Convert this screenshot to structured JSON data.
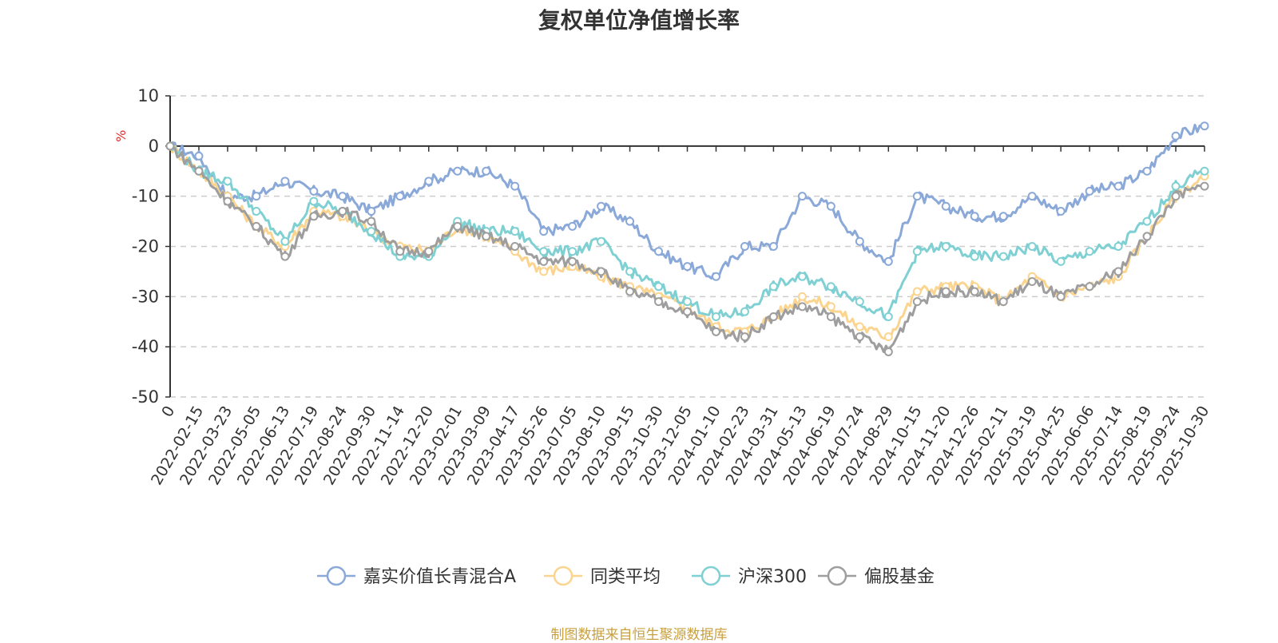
{
  "chart_data": {
    "type": "line",
    "title": "复权单位净值增长率",
    "ylabel": "%",
    "ylim": [
      -50,
      10
    ],
    "yticks": [
      10,
      0,
      -10,
      -20,
      -30,
      -40,
      -50
    ],
    "grid": true,
    "legend_position": "bottom-center",
    "x": [
      "0",
      "2022-02-15",
      "2022-03-23",
      "2022-05-05",
      "2022-06-13",
      "2022-07-19",
      "2022-08-24",
      "2022-09-30",
      "2022-11-14",
      "2022-12-20",
      "2023-02-01",
      "2023-03-09",
      "2023-04-17",
      "2023-05-26",
      "2023-07-05",
      "2023-08-10",
      "2023-09-15",
      "2023-10-30",
      "2023-12-05",
      "2024-01-10",
      "2024-02-23",
      "2024-03-31",
      "2024-05-13",
      "2024-06-19",
      "2024-07-24",
      "2024-08-29",
      "2024-10-15",
      "2024-11-20",
      "2024-12-26",
      "2025-02-11",
      "2025-03-19",
      "2025-04-25",
      "2025-06-06",
      "2025-07-14",
      "2025-08-19",
      "2025-09-24",
      "2025-10-30"
    ],
    "series": [
      {
        "name": "嘉实价值长青混合A",
        "color": "#8aa8d8",
        "values": [
          0,
          -2,
          -10,
          -10,
          -7,
          -9,
          -10,
          -13,
          -10,
          -7,
          -5,
          -5,
          -8,
          -17,
          -16,
          -12,
          -15,
          -21,
          -24,
          -26,
          -20,
          -20,
          -10,
          -12,
          -19,
          -23,
          -10,
          -12,
          -14,
          -14,
          -10,
          -13,
          -9,
          -8,
          -5,
          2,
          4
        ]
      },
      {
        "name": "同类平均",
        "color": "#fbd58f",
        "values": [
          0,
          -5,
          -10,
          -16,
          -20,
          -13,
          -14,
          -17,
          -20,
          -21,
          -16,
          -18,
          -21,
          -25,
          -24,
          -26,
          -28,
          -30,
          -32,
          -36,
          -37,
          -34,
          -30,
          -32,
          -36,
          -38,
          -29,
          -28,
          -28,
          -31,
          -26,
          -30,
          -28,
          -26,
          -18,
          -10,
          -6
        ]
      },
      {
        "name": "沪深300",
        "color": "#7fd0d3",
        "values": [
          0,
          -5,
          -7,
          -13,
          -19,
          -11,
          -13,
          -17,
          -22,
          -22,
          -15,
          -17,
          -17,
          -21,
          -21,
          -19,
          -25,
          -28,
          -31,
          -34,
          -33,
          -28,
          -26,
          -28,
          -31,
          -34,
          -21,
          -20,
          -22,
          -22,
          -20,
          -23,
          -21,
          -20,
          -15,
          -8,
          -5
        ]
      },
      {
        "name": "偏股基金",
        "color": "#9e9e9e",
        "values": [
          0,
          -5,
          -11,
          -16,
          -22,
          -14,
          -13,
          -15,
          -21,
          -21,
          -16,
          -18,
          -20,
          -23,
          -23,
          -25,
          -29,
          -31,
          -33,
          -37,
          -38,
          -34,
          -32,
          -34,
          -38,
          -41,
          -31,
          -29,
          -29,
          -31,
          -27,
          -30,
          -28,
          -25,
          -18,
          -10,
          -8
        ]
      }
    ]
  },
  "source_note": "制图数据来自恒生聚源数据库"
}
